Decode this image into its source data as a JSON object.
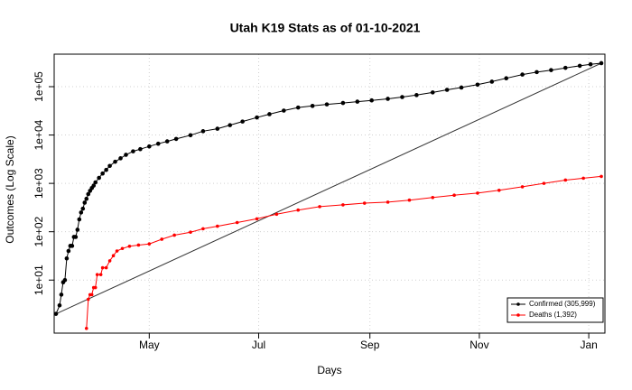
{
  "chart_data": {
    "type": "line",
    "title": "Utah K19 Stats as of 01-10-2021",
    "x_label": "Days",
    "y_label": "Outcomes (Log Scale)",
    "log_scale": true,
    "grid": true,
    "legend_position": "bottomright",
    "xlim": [
      8,
      315
    ],
    "xticks": [
      {
        "value": 61,
        "label": "May"
      },
      {
        "value": 122,
        "label": "Jul"
      },
      {
        "value": 184,
        "label": "Sep"
      },
      {
        "value": 245,
        "label": "Nov"
      },
      {
        "value": 306,
        "label": "Jan"
      }
    ],
    "ylim": [
      0.8,
      470000
    ],
    "yticks": [
      {
        "value": 10,
        "label": "1e+01"
      },
      {
        "value": 100,
        "label": "1e+02"
      },
      {
        "value": 1000,
        "label": "1e+03"
      },
      {
        "value": 10000,
        "label": "1e+04"
      },
      {
        "value": 100000,
        "label": "1e+05"
      }
    ],
    "series": [
      {
        "name": "Confirmed (305,999)",
        "color": "#000000",
        "x": [
          9,
          11,
          12,
          13,
          14,
          15,
          16,
          17,
          18,
          19,
          20,
          21,
          22,
          23,
          24,
          25,
          26,
          27,
          28,
          29,
          30,
          31,
          33,
          35,
          37,
          39,
          42,
          45,
          48,
          52,
          56,
          61,
          66,
          71,
          76,
          84,
          91,
          99,
          106,
          113,
          121,
          128,
          136,
          144,
          152,
          160,
          169,
          177,
          185,
          194,
          202,
          210,
          219,
          227,
          235,
          244,
          252,
          260,
          269,
          277,
          285,
          293,
          301,
          307,
          313
        ],
        "values": [
          2,
          3,
          5,
          9,
          10,
          28,
          40,
          51,
          51,
          78,
          78,
          110,
          180,
          250,
          300,
          400,
          480,
          600,
          700,
          800,
          900,
          1050,
          1300,
          1600,
          1900,
          2300,
          2800,
          3300,
          3900,
          4600,
          5100,
          5800,
          6600,
          7400,
          8300,
          9900,
          12000,
          13500,
          16000,
          19000,
          23000,
          27000,
          32000,
          37000,
          40000,
          43000,
          46000,
          49000,
          52000,
          56000,
          61000,
          67000,
          76000,
          86000,
          96000,
          110000,
          127000,
          149000,
          178000,
          200000,
          220000,
          245000,
          270000,
          290000,
          305999
        ]
      },
      {
        "name": "Deaths (1,392)",
        "color": "#ff0000",
        "x": [
          26,
          27,
          28,
          29,
          30,
          31,
          32,
          34,
          35,
          37,
          39,
          41,
          43,
          46,
          50,
          55,
          61,
          68,
          75,
          84,
          91,
          99,
          110,
          121,
          132,
          144,
          156,
          169,
          181,
          194,
          206,
          219,
          231,
          244,
          256,
          269,
          281,
          293,
          303,
          313
        ],
        "values": [
          1,
          4,
          5,
          5,
          7,
          7,
          13,
          13,
          18,
          18,
          25,
          32,
          40,
          45,
          50,
          53,
          56,
          70,
          85,
          98,
          115,
          130,
          155,
          185,
          230,
          280,
          330,
          360,
          390,
          410,
          450,
          510,
          570,
          630,
          720,
          850,
          1000,
          1170,
          1280,
          1392
        ]
      }
    ],
    "trend": {
      "color": "#333333",
      "x": [
        9,
        313
      ],
      "values": [
        2,
        305999
      ]
    }
  }
}
